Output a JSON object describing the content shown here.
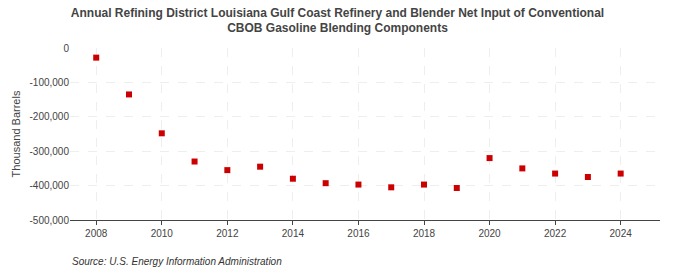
{
  "chart_data": {
    "type": "scatter",
    "title": "Annual Refining District Louisiana Gulf Coast Refinery and Blender Net Input of Conventional\nCBOB Gasoline Blending Components",
    "ylabel": "Thousand Barrels",
    "annotations": [
      "Source: U.S. Energy Information Administration"
    ],
    "x": [
      2008,
      2009,
      2010,
      2011,
      2012,
      2013,
      2014,
      2015,
      2016,
      2017,
      2018,
      2019,
      2020,
      2021,
      2022,
      2023,
      2024
    ],
    "values": [
      -28000,
      -135000,
      -248000,
      -330000,
      -355000,
      -345000,
      -380000,
      -393000,
      -397000,
      -405000,
      -397000,
      -407000,
      -320000,
      -350000,
      -365000,
      -375000,
      -365000
    ],
    "color": "#cc0000",
    "marker": "square",
    "xlim": [
      2007.2,
      2025.2
    ],
    "xticks": [
      2008,
      2010,
      2012,
      2014,
      2016,
      2018,
      2020,
      2022,
      2024
    ],
    "ylim": [
      -500000,
      0
    ],
    "yticks": [
      0,
      {
        "value": -100000,
        "label": "-100,000"
      },
      {
        "value": -200000,
        "label": "-200,000"
      },
      {
        "value": -300000,
        "label": "-300,000"
      },
      {
        "value": -400000,
        "label": "-400,000"
      },
      {
        "value": -500000,
        "label": "-500,000"
      }
    ],
    "grid": true
  }
}
